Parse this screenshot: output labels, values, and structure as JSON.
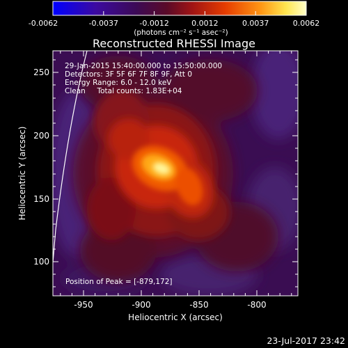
{
  "colorbar": {
    "ticks": [
      "-0.0062",
      "-0.0037",
      "-0.0012",
      "0.0012",
      "0.0037",
      "0.0062"
    ],
    "units_label": "(photons cm⁻² s⁻¹ asec⁻²)"
  },
  "image": {
    "title": "Reconstructed RHESSI Image",
    "info_lines": [
      "29-Jan-2015 15:40:00.000 to 15:50:00.000",
      "Detectors: 3F 5F 6F 7F 8F 9F, Att 0",
      "Energy Range: 6.0 - 12.0 keV",
      "Clean     Total counts: 1.83E+04"
    ],
    "peak_text": "Position of Peak = [-879,172]",
    "xlabel": "Heliocentric X (arcsec)",
    "ylabel": "Heliocentric Y (arcsec)",
    "xticks": [
      "-950",
      "-900",
      "-850",
      "-800"
    ],
    "yticks": [
      "100",
      "150",
      "200",
      "250"
    ],
    "timestamp": "23-Jul-2017 23:42"
  }
}
